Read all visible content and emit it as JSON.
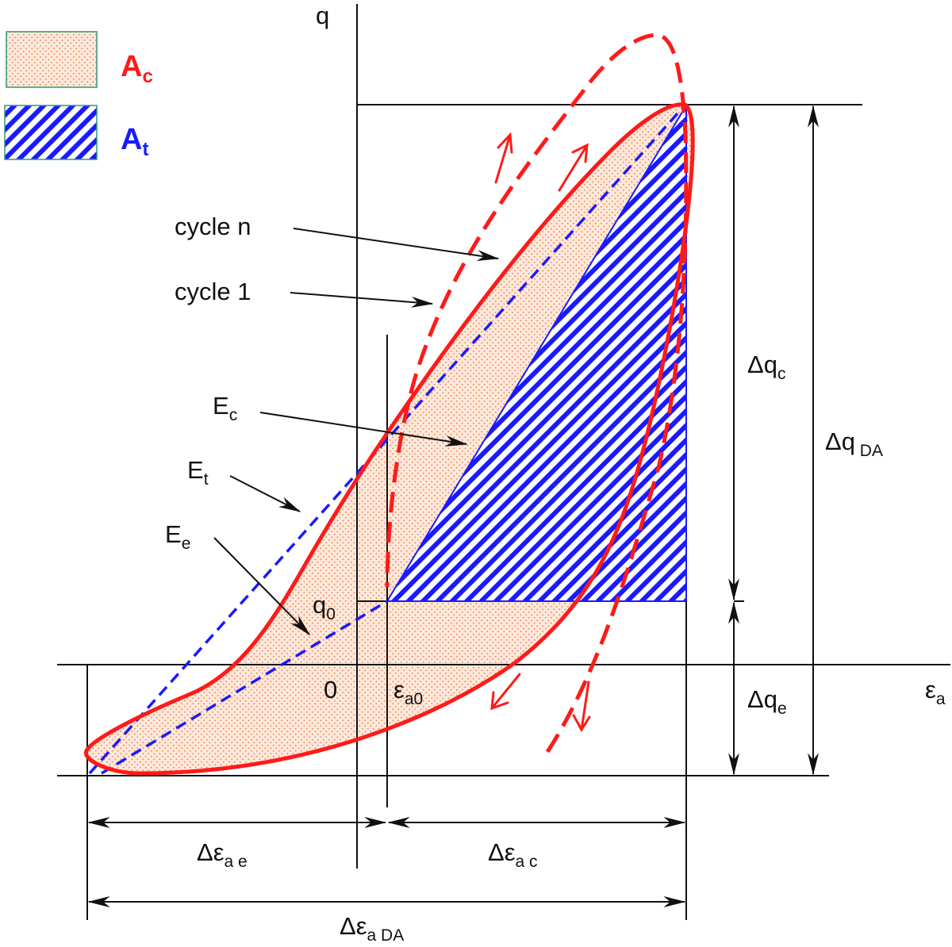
{
  "colors": {
    "red": "#ff1a1a",
    "blue": "#1a1aff",
    "dots": "#f08040",
    "fill_ac": "#fde8dc",
    "legend_border": "#2a9a7a",
    "ink": "#111111"
  },
  "legend": {
    "compressive": {
      "base": "A",
      "sub": "c"
    },
    "tensile": {
      "base": "A",
      "sub": "t"
    }
  },
  "axes": {
    "q": "q",
    "strain": {
      "base": "ε",
      "sub": "a"
    },
    "origin": "0",
    "q0": {
      "base": "q",
      "sub": "0"
    },
    "eps_a0": {
      "base": "ε",
      "sub": "a0"
    }
  },
  "curves": {
    "cycle_n": "cycle n",
    "cycle_1": "cycle 1"
  },
  "moduli": {
    "Ec": {
      "base": "E",
      "sub": "c"
    },
    "Et": {
      "base": "E",
      "sub": "t"
    },
    "Ee": {
      "base": "E",
      "sub": "e"
    }
  },
  "dimensions": {
    "dq_c": {
      "base": "Δq",
      "sub": "c"
    },
    "dq_e": {
      "base": "Δq",
      "sub": "e"
    },
    "dq_DA": {
      "base": "Δq",
      "sub": " DA"
    },
    "de_ae": {
      "base": "Δε",
      "sub": "a e"
    },
    "de_ac": {
      "base": "Δε",
      "sub": "a c"
    },
    "de_aDA": {
      "base": "Δε",
      "sub": "a DA"
    }
  }
}
